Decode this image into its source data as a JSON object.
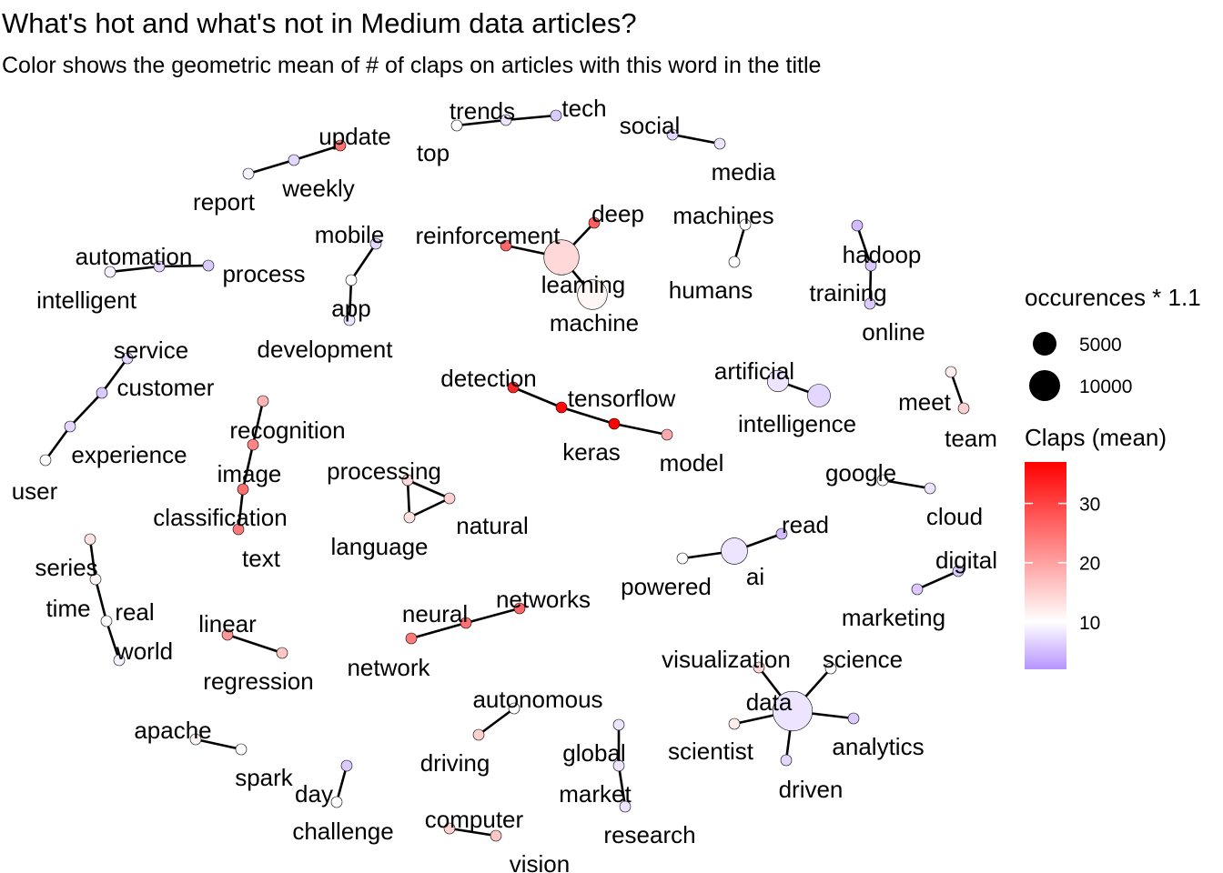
{
  "chart_data": {
    "type": "network",
    "title": "What's hot and what's not in Medium data articles?",
    "subtitle": "Color shows the geometric mean of # of claps on articles with this word in the title",
    "legend": {
      "size_title": "occurences * 1.1",
      "size_breaks": [
        5000,
        10000
      ],
      "color_title": "Claps (mean)",
      "color_breaks": [
        10,
        20,
        30
      ],
      "color_range": [
        2,
        37
      ],
      "colors": {
        "low": "#b794ff",
        "mid": "#ffffff",
        "high": "#ff0000"
      },
      "position": "right"
    },
    "nodes": [
      {
        "id": "trends",
        "claps": 8
      },
      {
        "id": "tech",
        "claps": 6
      },
      {
        "id": "top",
        "claps": 10
      },
      {
        "id": "social",
        "claps": 7
      },
      {
        "id": "media",
        "claps": 8
      },
      {
        "id": "update",
        "claps": 25
      },
      {
        "id": "weekly",
        "claps": 7
      },
      {
        "id": "report",
        "claps": 9
      },
      {
        "id": "deep",
        "claps": 27
      },
      {
        "id": "reinforcement",
        "claps": 26
      },
      {
        "id": "learning",
        "claps": 14,
        "occurrences": 8000
      },
      {
        "id": "machine",
        "claps": 11,
        "occurrences": 5000
      },
      {
        "id": "machines",
        "claps": 10
      },
      {
        "id": "humans",
        "claps": 10
      },
      {
        "id": "hadoop",
        "claps": 5
      },
      {
        "id": "training",
        "claps": 6
      },
      {
        "id": "online",
        "claps": 6
      },
      {
        "id": "automation",
        "claps": 7
      },
      {
        "id": "process",
        "claps": 6
      },
      {
        "id": "intelligent",
        "claps": 9
      },
      {
        "id": "mobile",
        "claps": 7
      },
      {
        "id": "app",
        "claps": 10
      },
      {
        "id": "development",
        "claps": 8
      },
      {
        "id": "service",
        "claps": 7
      },
      {
        "id": "customer",
        "claps": 6
      },
      {
        "id": "experience",
        "claps": 7
      },
      {
        "id": "user",
        "claps": 10
      },
      {
        "id": "detection",
        "claps": 33
      },
      {
        "id": "tensorflow",
        "claps": 36
      },
      {
        "id": "keras",
        "claps": 37
      },
      {
        "id": "model",
        "claps": 19
      },
      {
        "id": "artificial",
        "claps": 8,
        "occurrences": 1800
      },
      {
        "id": "intelligence",
        "claps": 7,
        "occurrences": 2200
      },
      {
        "id": "meet",
        "claps": 12
      },
      {
        "id": "team",
        "claps": 15
      },
      {
        "id": "recognition",
        "claps": 18
      },
      {
        "id": "image",
        "claps": 23
      },
      {
        "id": "classification",
        "claps": 25
      },
      {
        "id": "text",
        "claps": 24
      },
      {
        "id": "processing",
        "claps": 14
      },
      {
        "id": "natural",
        "claps": 15
      },
      {
        "id": "language",
        "claps": 13
      },
      {
        "id": "google",
        "claps": 10
      },
      {
        "id": "cloud",
        "claps": 8
      },
      {
        "id": "ai",
        "claps": 8,
        "occurrences": 3500
      },
      {
        "id": "read",
        "claps": 5
      },
      {
        "id": "powered",
        "claps": 10
      },
      {
        "id": "digital",
        "claps": 6
      },
      {
        "id": "marketing",
        "claps": 6
      },
      {
        "id": "series",
        "claps": 13
      },
      {
        "id": "time",
        "claps": 11
      },
      {
        "id": "real",
        "claps": 10
      },
      {
        "id": "world",
        "claps": 9
      },
      {
        "id": "linear",
        "claps": 21
      },
      {
        "id": "regression",
        "claps": 16
      },
      {
        "id": "neural",
        "claps": 25
      },
      {
        "id": "networks",
        "claps": 26
      },
      {
        "id": "network",
        "claps": 24
      },
      {
        "id": "visualization",
        "claps": 14
      },
      {
        "id": "science",
        "claps": 10
      },
      {
        "id": "data",
        "claps": 8,
        "occurrences": 11000
      },
      {
        "id": "analytics",
        "claps": 6
      },
      {
        "id": "scientist",
        "claps": 12
      },
      {
        "id": "driven",
        "claps": 7
      },
      {
        "id": "autonomous",
        "claps": 10
      },
      {
        "id": "driving",
        "claps": 15
      },
      {
        "id": "apache",
        "claps": 11
      },
      {
        "id": "spark",
        "claps": 10
      },
      {
        "id": "day",
        "claps": 6
      },
      {
        "id": "challenge",
        "claps": 10
      },
      {
        "id": "global",
        "claps": 8
      },
      {
        "id": "market",
        "claps": 8
      },
      {
        "id": "research",
        "claps": 8
      },
      {
        "id": "computer",
        "claps": 15
      },
      {
        "id": "vision",
        "claps": 16
      }
    ],
    "edges": [
      [
        "top",
        "trends"
      ],
      [
        "trends",
        "tech"
      ],
      [
        "social",
        "media"
      ],
      [
        "report",
        "weekly"
      ],
      [
        "weekly",
        "update"
      ],
      [
        "deep",
        "learning"
      ],
      [
        "reinforcement",
        "learning"
      ],
      [
        "learning",
        "machine"
      ],
      [
        "machines",
        "humans"
      ],
      [
        "hadoop",
        "training"
      ],
      [
        "training",
        "online"
      ],
      [
        "intelligent",
        "automation"
      ],
      [
        "automation",
        "process"
      ],
      [
        "mobile",
        "app"
      ],
      [
        "app",
        "development"
      ],
      [
        "service",
        "customer"
      ],
      [
        "customer",
        "experience"
      ],
      [
        "experience",
        "user"
      ],
      [
        "detection",
        "tensorflow"
      ],
      [
        "tensorflow",
        "keras"
      ],
      [
        "keras",
        "model"
      ],
      [
        "artificial",
        "intelligence"
      ],
      [
        "meet",
        "team"
      ],
      [
        "recognition",
        "image"
      ],
      [
        "image",
        "classification"
      ],
      [
        "classification",
        "text"
      ],
      [
        "processing",
        "natural"
      ],
      [
        "natural",
        "language"
      ],
      [
        "language",
        "processing"
      ],
      [
        "google",
        "cloud"
      ],
      [
        "powered",
        "ai"
      ],
      [
        "ai",
        "read"
      ],
      [
        "digital",
        "marketing"
      ],
      [
        "series",
        "time"
      ],
      [
        "time",
        "real"
      ],
      [
        "real",
        "world"
      ],
      [
        "linear",
        "regression"
      ],
      [
        "network",
        "neural"
      ],
      [
        "neural",
        "networks"
      ],
      [
        "visualization",
        "data"
      ],
      [
        "science",
        "data"
      ],
      [
        "data",
        "analytics"
      ],
      [
        "data",
        "scientist"
      ],
      [
        "data",
        "driven"
      ],
      [
        "autonomous",
        "driving"
      ],
      [
        "apache",
        "spark"
      ],
      [
        "day",
        "challenge"
      ],
      [
        "global",
        "market"
      ],
      [
        "market",
        "research"
      ],
      [
        "computer",
        "vision"
      ]
    ]
  }
}
